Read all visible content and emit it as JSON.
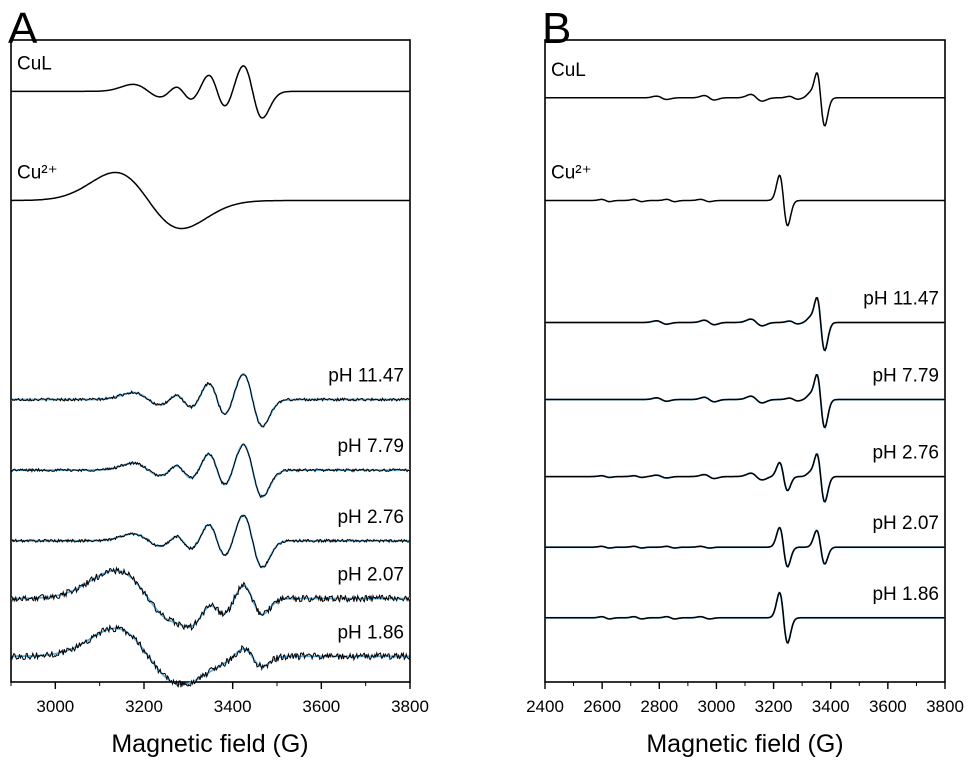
{
  "figure": {
    "panel_a": "A",
    "panel_b": "B"
  },
  "colors": {
    "experimental": "#000000",
    "simulated": "#5aaee0",
    "frame": "#000000"
  },
  "chart_data": [
    {
      "type": "line",
      "panel": "A",
      "xlabel": "Magnetic field (G)",
      "ylabel": "",
      "xlim": [
        2900,
        3800
      ],
      "xticks": [
        3000,
        3200,
        3400,
        3600,
        3800
      ],
      "yaxis_visible": false,
      "traces": [
        {
          "label": "CuL",
          "sim": false,
          "noise": 0,
          "baseline": 0.92,
          "lines": [
            [
              3210,
              0.25,
              35
            ],
            [
              3290,
              0.3,
              20
            ],
            [
              3365,
              0.6,
              20
            ],
            [
              3445,
              0.95,
              22
            ]
          ]
        },
        {
          "label": "Cu²⁺",
          "sim": false,
          "noise": 0,
          "baseline": 0.75,
          "lines": [
            [
              3210,
              1.0,
              75
            ]
          ]
        },
        {
          "label": "pH 11.47",
          "sim": true,
          "noise": 0.05,
          "baseline": 0.44,
          "lines": [
            [
              3210,
              0.25,
              35
            ],
            [
              3290,
              0.3,
              20
            ],
            [
              3365,
              0.6,
              20
            ],
            [
              3445,
              0.95,
              22
            ]
          ]
        },
        {
          "label": "pH 7.79",
          "sim": true,
          "noise": 0.05,
          "baseline": 0.33,
          "lines": [
            [
              3210,
              0.25,
              35
            ],
            [
              3290,
              0.3,
              20
            ],
            [
              3365,
              0.6,
              20
            ],
            [
              3445,
              0.95,
              22
            ]
          ]
        },
        {
          "label": "pH 2.76",
          "sim": true,
          "noise": 0.05,
          "baseline": 0.22,
          "lines": [
            [
              3210,
              0.25,
              35
            ],
            [
              3290,
              0.3,
              20
            ],
            [
              3365,
              0.6,
              20
            ],
            [
              3445,
              0.95,
              22
            ]
          ]
        },
        {
          "label": "pH 2.07",
          "sim": true,
          "noise": 0.12,
          "baseline": 0.13,
          "lines": [
            [
              3210,
              1.0,
              75
            ],
            [
              3290,
              0.1,
              20
            ],
            [
              3365,
              0.3,
              20
            ],
            [
              3445,
              0.55,
              22
            ]
          ]
        },
        {
          "label": "pH 1.86",
          "sim": true,
          "noise": 0.12,
          "baseline": 0.04,
          "lines": [
            [
              3210,
              1.0,
              75
            ],
            [
              3445,
              0.35,
              22
            ]
          ]
        }
      ]
    },
    {
      "type": "line",
      "panel": "B",
      "xlabel": "Magnetic field (G)",
      "ylabel": "",
      "xlim": [
        2400,
        3800
      ],
      "xticks": [
        2400,
        2600,
        2800,
        3000,
        3200,
        3400,
        3600,
        3800
      ],
      "yaxis_visible": false,
      "traces": [
        {
          "label": "CuL",
          "sim": false,
          "noise": 0,
          "baseline": 0.91,
          "lines": [
            [
              2808,
              0.06,
              18
            ],
            [
              2975,
              0.08,
              18
            ],
            [
              3140,
              0.12,
              20
            ],
            [
              3270,
              0.05,
              15
            ],
            [
              3335,
              0.12,
              12
            ],
            [
              3365,
              1.0,
              14
            ]
          ]
        },
        {
          "label": "Cu²⁺",
          "sim": false,
          "noise": 0,
          "baseline": 0.75,
          "lines": [
            [
              2612,
              0.04,
              14
            ],
            [
              2725,
              0.04,
              14
            ],
            [
              2840,
              0.04,
              14
            ],
            [
              2960,
              0.04,
              16
            ],
            [
              3235,
              0.9,
              14
            ]
          ]
        },
        {
          "label": "pH 11.47",
          "sim": true,
          "noise": 0,
          "baseline": 0.56,
          "lines": [
            [
              2808,
              0.06,
              18
            ],
            [
              2975,
              0.08,
              18
            ],
            [
              3140,
              0.12,
              20
            ],
            [
              3270,
              0.05,
              15
            ],
            [
              3335,
              0.12,
              12
            ],
            [
              3365,
              1.0,
              14
            ]
          ]
        },
        {
          "label": "pH 7.79",
          "sim": true,
          "noise": 0,
          "baseline": 0.44,
          "lines": [
            [
              2808,
              0.06,
              18
            ],
            [
              2975,
              0.08,
              18
            ],
            [
              3140,
              0.12,
              20
            ],
            [
              3270,
              0.05,
              15
            ],
            [
              3335,
              0.12,
              12
            ],
            [
              3365,
              1.0,
              14
            ]
          ]
        },
        {
          "label": "pH 2.76",
          "sim": true,
          "noise": 0,
          "baseline": 0.32,
          "lines": [
            [
              2612,
              0.03,
              14
            ],
            [
              2725,
              0.03,
              14
            ],
            [
              2808,
              0.05,
              18
            ],
            [
              2975,
              0.07,
              18
            ],
            [
              3140,
              0.12,
              20
            ],
            [
              3235,
              0.5,
              14
            ],
            [
              3335,
              0.1,
              12
            ],
            [
              3365,
              0.9,
              14
            ]
          ]
        },
        {
          "label": "pH 2.07",
          "sim": true,
          "noise": 0,
          "baseline": 0.21,
          "lines": [
            [
              2612,
              0.03,
              14
            ],
            [
              2725,
              0.03,
              14
            ],
            [
              2840,
              0.03,
              14
            ],
            [
              2960,
              0.03,
              16
            ],
            [
              3235,
              0.7,
              14
            ],
            [
              3365,
              0.6,
              14
            ]
          ]
        },
        {
          "label": "pH 1.86",
          "sim": true,
          "noise": 0,
          "baseline": 0.1,
          "lines": [
            [
              2612,
              0.04,
              14
            ],
            [
              2725,
              0.04,
              14
            ],
            [
              2840,
              0.04,
              14
            ],
            [
              2960,
              0.04,
              16
            ],
            [
              3235,
              0.9,
              14
            ]
          ]
        }
      ]
    }
  ]
}
